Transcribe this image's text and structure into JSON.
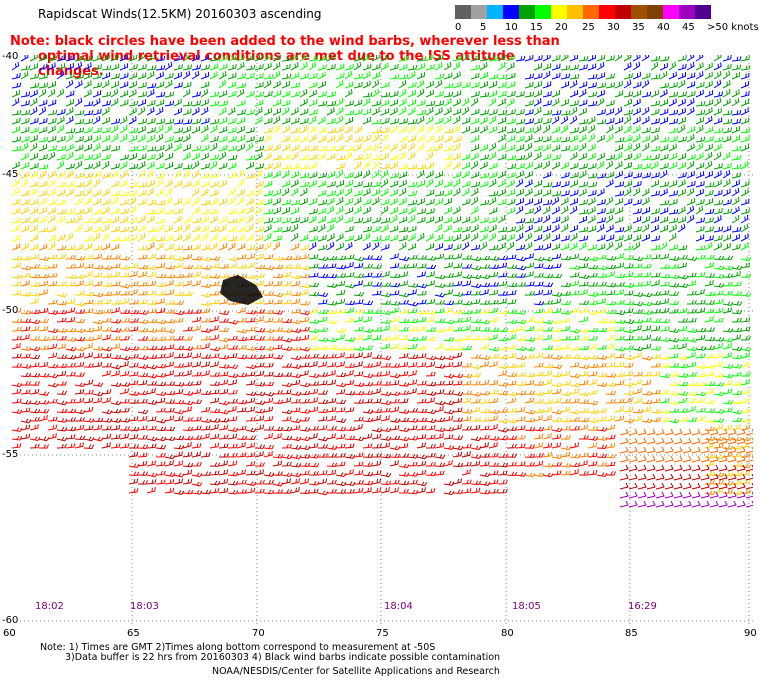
{
  "title": "Rapidscat Winds(12.5KM) 20160303 ascending",
  "note_line1": "Note: black circles have been added to the wind barbs, wherever less than",
  "note_line2": "optimal wind retrieval conditions are met due to the ISS attitude changes.",
  "legend": {
    "labels": [
      "0",
      "5",
      "10",
      "15",
      "20",
      "25",
      "30",
      "35",
      "40",
      "45",
      ">50 knots"
    ],
    "colors": [
      "#606060",
      "#a0a0a0",
      "#00b4ff",
      "#0000ff",
      "#00a000",
      "#00ff00",
      "#ffff00",
      "#ffc000",
      "#ff6a00",
      "#ff0000",
      "#c00000",
      "#a05000",
      "#804000",
      "#ff00ff",
      "#a000c0",
      "#500090"
    ]
  },
  "lat_labels": [
    "-40",
    "-45",
    "-50",
    "-55",
    "-60"
  ],
  "lon_labels": [
    "60",
    "65",
    "70",
    "75",
    "80",
    "85",
    "90"
  ],
  "time_labels": [
    "18:02",
    "18:03",
    "18:04",
    "18:05",
    "16:29"
  ],
  "footnote_line1": "Note: 1) Times are GMT 2)Times along bottom correspond to measurement at -50S",
  "footnote_line2": "3)Data buffer is 22 hrs from 20160303 4) Black wind barbs indicate possible contamination",
  "credit": "NOAA/NESDIS/Center for Satellite Applications and Research"
}
